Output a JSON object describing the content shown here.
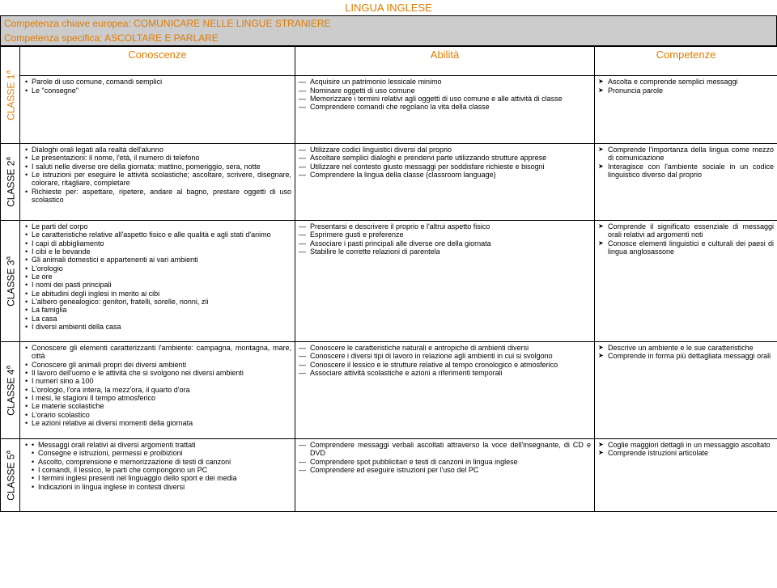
{
  "title": "LINGUA INGLESE",
  "bar1_label": "Competenza chiave europea: ",
  "bar1_value": "COMUNICARE NELLE LINGUE STRANIERE",
  "bar2_label": "Competenza specifica: ",
  "bar2_value": "ASCOLTARE E PARLARE",
  "headers": {
    "con": "Conoscenze",
    "abi": "Abilità",
    "comp": "Competenze"
  },
  "rows": [
    {
      "side": "CLASSE 1",
      "sup": "a",
      "con": [
        "Parole di uso comune, comandi semplici",
        "Le \"consegne\""
      ],
      "abi": [
        "Acquisire un patrimonio lessicale minimo",
        "Nominare oggetti di uso comune",
        "Memorizzare i termini relativi agli oggetti di uso comune e alle attività di classe",
        "Comprendere comandi che regolano la vita della classe"
      ],
      "comp": [
        "Ascolta e comprende semplici messaggi",
        "Pronuncia parole"
      ]
    },
    {
      "side": "CLASSE 2",
      "sup": "a",
      "con": [
        "Dialoghi orali legati alla realtà dell'alunno",
        "Le presentazioni: il nome, l'età, il numero di telefono",
        "I saluti nelle diverse ore della giornata: mattino, pomeriggio, sera, notte",
        "Le istruzioni per eseguire le attività scolastiche; ascoltare, scrivere, disegnare, colorare, ritagliare, completare",
        "Richieste per: aspettare, ripetere, andare al bagno, prestare oggetti di uso scolastico"
      ],
      "abi": [
        "Utilizzare codici linguistici diversi dal proprio",
        "Ascoltare semplici dialoghi e prendervi parte utilizzando strutture apprese",
        "Utilizzare nel contesto giusto messaggi per soddisfare richieste e bisogni",
        "Comprendere la lingua della classe (classroom language)"
      ],
      "comp": [
        "Comprende l'importanza della lingua come mezzo di comunicazione",
        "Interagisce con l'ambiente sociale in un codice linguistico diverso dal proprio"
      ]
    },
    {
      "side": "CLASSE 3",
      "sup": "a",
      "con": [
        "Le parti del corpo",
        "Le caratteristiche relative all'aspetto fisico e alle qualità e agli stati d'animo",
        "I capi di abbigliamento",
        "I cibi e le bevande",
        "Gli animali domestici e appartenenti ai vari ambienti",
        "L'orologio",
        "Le ore",
        "I nomi dei pasti principali",
        "Le abitudini degli inglesi in merito ai cibi",
        "L'albero genealogico: genitori, fratelli, sorelle, nonni, zii",
        "La famiglia",
        "La casa",
        "I diversi ambienti della casa"
      ],
      "abi": [
        "Presentarsi e descrivere il proprio e l'altrui aspetto fisico",
        "Esprimere gusti e preferenze",
        "Associare i pasti principali alle diverse ore della giornata",
        "Stabilire le corrette relazioni di parentela"
      ],
      "comp": [
        "Comprende il significato essenziale di messaggi orali relativi ad argomenti noti",
        "Conosce elementi linguistici e culturali dei paesi di lingua anglosassone"
      ]
    },
    {
      "side": "CLASSE 4",
      "sup": "a",
      "con": [
        "Conoscere gli elementi caratterizzanti l'ambiente: campagna, montagna, mare, città",
        "Conoscere gli animali propri dei diversi ambienti",
        "Il lavoro dell'uomo e le attività che si svolgono nei diversi ambienti",
        "I numeri sino a 100",
        "L'orologio, l'ora intera, la mezz'ora, il quarto d'ora",
        "I mesi, le stagioni Il tempo atmosferico",
        "Le materie scolastiche",
        "L'orario scolastico",
        "Le azioni relative ai diversi momenti della giornata"
      ],
      "abi": [
        "Conoscere le caratteristiche naturali e antropiche di ambienti diversi",
        "Conoscere i diversi tipi di lavoro in relazione agli ambienti in cui si svolgono",
        "Conoscere il lessico e le strutture relative al tempo cronologico e atmosferico",
        "Associare attività scolastiche e azioni a riferimenti temporali"
      ],
      "comp": [
        "Descrive un ambiente e le sue caratteristiche",
        "Comprende in forma più dettagliata messaggi orali"
      ]
    },
    {
      "side": "CLASSE 5",
      "sup": "a",
      "con": [
        "Messaggi orali relativi ai diversi argomenti trattati",
        "Consegne e istruzioni, permessi e proibizioni",
        "Ascolto, comprensione e memorizzazione di testi di canzoni",
        "I comandi, il lessico, le parti che compongono un PC",
        "I termini inglesi presenti nel linguaggio dello sport e dei media",
        "Indicazioni in lingua inglese in contesti diversi"
      ],
      "abi": [
        "Comprendere messaggi verbali ascoltati attraverso la voce dell'insegnante, di CD e DVD",
        "Comprendere spot pubblicitari e testi di canzoni in lingua inglese",
        "Comprendere ed eseguire istruzioni per l'uso del PC"
      ],
      "comp": [
        "Coglie maggiori dettagli in un messaggio ascoltato",
        "Comprende istruzioni articolate"
      ]
    }
  ]
}
